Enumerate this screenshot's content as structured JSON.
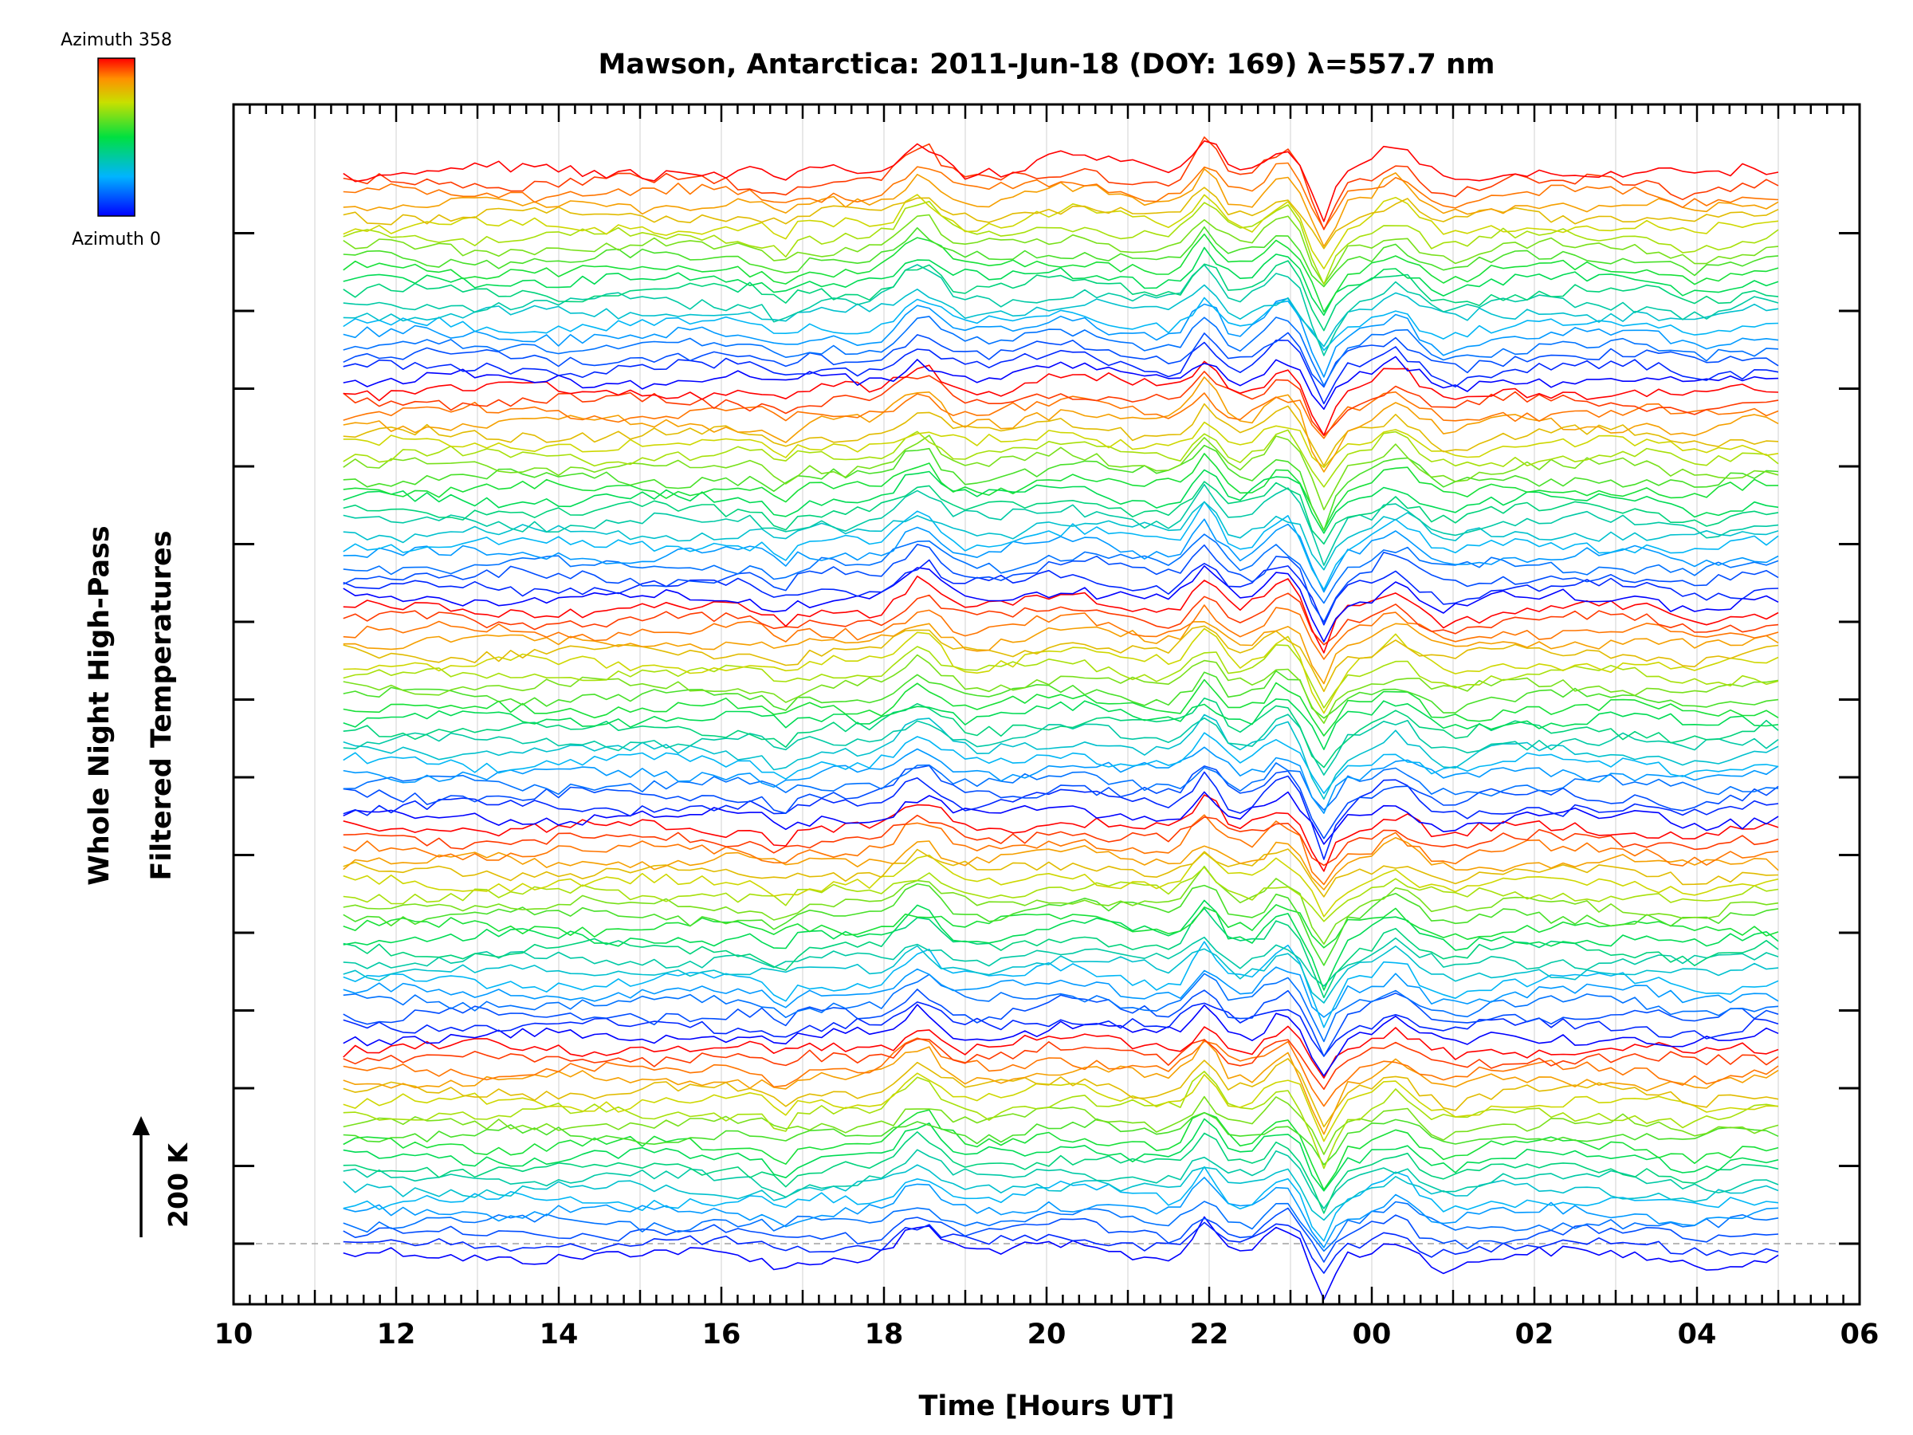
{
  "chart_data": {
    "type": "line",
    "title": "Mawson, Antarctica: 2011-Jun-18 (DOY: 169) λ=557.7 nm",
    "xlabel": "Time [Hours UT]",
    "ylabel_line1": "Whole Night High-Pass",
    "ylabel_line2": "Filtered Temperatures",
    "x_hours_since_10UT": {
      "min": 0,
      "max": 20
    },
    "x_ticks": [
      {
        "h": 0,
        "label": "10"
      },
      {
        "h": 2,
        "label": "12"
      },
      {
        "h": 4,
        "label": "14"
      },
      {
        "h": 6,
        "label": "16"
      },
      {
        "h": 8,
        "label": "18"
      },
      {
        "h": 10,
        "label": "20"
      },
      {
        "h": 12,
        "label": "22"
      },
      {
        "h": 14,
        "label": "00"
      },
      {
        "h": 16,
        "label": "02"
      },
      {
        "h": 18,
        "label": "04"
      },
      {
        "h": 20,
        "label": "06"
      }
    ],
    "data_time_range_hours": [
      1.35,
      19.0
    ],
    "scale_bar_label": "200 K",
    "colorbar": {
      "top_label": "Azimuth  358",
      "bottom_label": "Azimuth  0",
      "min": 0,
      "max": 358
    },
    "stacks": 5,
    "lines_per_stack": 20,
    "line_count": 100,
    "grid": "vertical every hour, light gray",
    "baseline_marker": "dashed gray line at lowest trace"
  },
  "colors": {
    "background": "#ffffff",
    "axis": "#000000",
    "grid": "#d9d9d9",
    "baseline": "#a0a0a0"
  }
}
